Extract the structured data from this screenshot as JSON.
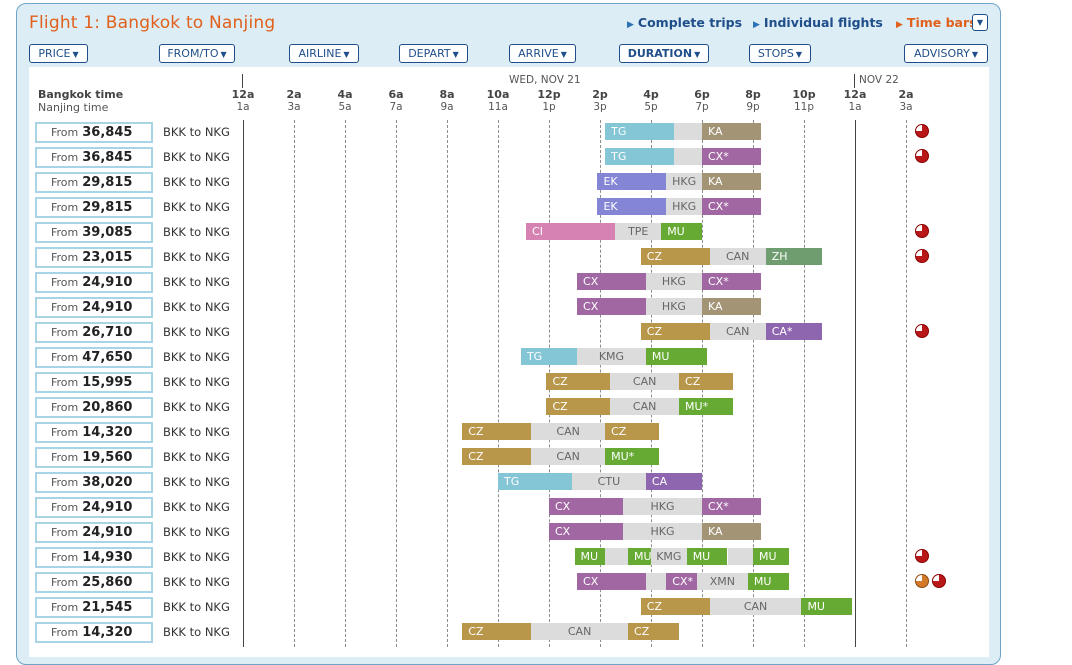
{
  "title": "Flight 1: Bangkok to Nanjing",
  "top_links": [
    "Complete trips",
    "Individual flights",
    "Time bars"
  ],
  "sort_buttons": [
    "PRICE",
    "FROM/TO",
    "AIRLINE",
    "DEPART",
    "ARRIVE",
    "DURATION",
    "STOPS",
    "ADVISORY"
  ],
  "header": {
    "origin_time_label": "Bangkok time",
    "dest_time_label": "Nanjing time",
    "date1": "WED, NOV 21",
    "date2": "NOV 22",
    "ticks_top": [
      "12a",
      "2a",
      "4a",
      "6a",
      "8a",
      "10a",
      "12p",
      "2p",
      "4p",
      "6p",
      "8p",
      "10p",
      "12a",
      "2a"
    ],
    "ticks_bottom": [
      "1a",
      "3a",
      "5a",
      "7a",
      "9a",
      "11a",
      "1p",
      "3p",
      "5p",
      "7p",
      "9p",
      "11p",
      "1a",
      "3a"
    ]
  },
  "price_prefix": "From",
  "carrier_colors": {
    "TG": "#84c6d6",
    "KA": "#a39476",
    "CX": "#a167a3",
    "EK": "#8585d6",
    "CI": "#d682b3",
    "MU": "#66aa33",
    "CZ": "#b8964a",
    "ZH": "#6f9d6f",
    "CA": "#8e66b0"
  },
  "rows": [
    {
      "price": "36,845",
      "route": "BKK to NKG",
      "advisory": [
        "red"
      ],
      "segments": [
        [
          "TG",
          "TG",
          14.2,
          16.9
        ],
        [
          "lay",
          "",
          16.9,
          18.0
        ],
        [
          "KA",
          "KA",
          18.0,
          20.3
        ]
      ]
    },
    {
      "price": "36,845",
      "route": "BKK to NKG",
      "advisory": [
        "red"
      ],
      "segments": [
        [
          "TG",
          "TG",
          14.2,
          16.9
        ],
        [
          "lay",
          "",
          16.9,
          18.0
        ],
        [
          "CX",
          "CX*",
          18.0,
          20.3
        ]
      ]
    },
    {
      "price": "29,815",
      "route": "BKK to NKG",
      "advisory": [],
      "segments": [
        [
          "EK",
          "EK",
          13.9,
          16.6
        ],
        [
          "lay",
          "HKG",
          16.6,
          18.0
        ],
        [
          "KA",
          "KA",
          18.0,
          20.3
        ]
      ]
    },
    {
      "price": "29,815",
      "route": "BKK to NKG",
      "advisory": [],
      "segments": [
        [
          "EK",
          "EK",
          13.9,
          16.6
        ],
        [
          "lay",
          "HKG",
          16.6,
          18.0
        ],
        [
          "CX",
          "CX*",
          18.0,
          20.3
        ]
      ]
    },
    {
      "price": "39,085",
      "route": "BKK to NKG",
      "advisory": [
        "red"
      ],
      "segments": [
        [
          "CI",
          "CI",
          11.1,
          14.6
        ],
        [
          "lay",
          "TPE",
          14.6,
          16.4
        ],
        [
          "MU",
          "MU",
          16.4,
          18.0
        ]
      ]
    },
    {
      "price": "23,015",
      "route": "BKK to NKG",
      "advisory": [
        "red"
      ],
      "segments": [
        [
          "CZ",
          "CZ",
          15.6,
          18.3
        ],
        [
          "lay",
          "CAN",
          18.3,
          20.5
        ],
        [
          "ZH",
          "ZH",
          20.5,
          22.7
        ]
      ]
    },
    {
      "price": "24,910",
      "route": "BKK to NKG",
      "advisory": [],
      "segments": [
        [
          "CX",
          "CX",
          13.1,
          15.8
        ],
        [
          "lay",
          "HKG",
          15.8,
          18.0
        ],
        [
          "CX",
          "CX*",
          18.0,
          20.3
        ]
      ]
    },
    {
      "price": "24,910",
      "route": "BKK to NKG",
      "advisory": [],
      "segments": [
        [
          "CX",
          "CX",
          13.1,
          15.8
        ],
        [
          "lay",
          "HKG",
          15.8,
          18.0
        ],
        [
          "KA",
          "KA",
          18.0,
          20.3
        ]
      ]
    },
    {
      "price": "26,710",
      "route": "BKK to NKG",
      "advisory": [
        "red"
      ],
      "segments": [
        [
          "CZ",
          "CZ",
          15.6,
          18.3
        ],
        [
          "lay",
          "CAN",
          18.3,
          20.5
        ],
        [
          "CA",
          "CA*",
          20.5,
          22.7
        ]
      ]
    },
    {
      "price": "47,650",
      "route": "BKK to NKG",
      "advisory": [],
      "segments": [
        [
          "TG",
          "TG",
          10.9,
          13.1
        ],
        [
          "lay",
          "KMG",
          13.1,
          15.8
        ],
        [
          "MU",
          "MU",
          15.8,
          18.2
        ]
      ]
    },
    {
      "price": "15,995",
      "route": "BKK to NKG",
      "advisory": [],
      "segments": [
        [
          "CZ",
          "CZ",
          11.9,
          14.4
        ],
        [
          "lay",
          "CAN",
          14.4,
          17.1
        ],
        [
          "CZ",
          "CZ",
          17.1,
          19.2
        ]
      ]
    },
    {
      "price": "20,860",
      "route": "BKK to NKG",
      "advisory": [],
      "segments": [
        [
          "CZ",
          "CZ",
          11.9,
          14.4
        ],
        [
          "lay",
          "CAN",
          14.4,
          17.1
        ],
        [
          "MU",
          "MU*",
          17.1,
          19.2
        ]
      ]
    },
    {
      "price": "14,320",
      "route": "BKK to NKG",
      "advisory": [],
      "segments": [
        [
          "CZ",
          "CZ",
          8.6,
          11.3
        ],
        [
          "lay",
          "CAN",
          11.3,
          14.2
        ],
        [
          "CZ",
          "CZ",
          14.2,
          16.3
        ]
      ]
    },
    {
      "price": "19,560",
      "route": "BKK to NKG",
      "advisory": [],
      "segments": [
        [
          "CZ",
          "CZ",
          8.6,
          11.3
        ],
        [
          "lay",
          "CAN",
          11.3,
          14.2
        ],
        [
          "MU",
          "MU*",
          14.2,
          16.3
        ]
      ]
    },
    {
      "price": "38,020",
      "route": "BKK to NKG",
      "advisory": [],
      "segments": [
        [
          "TG",
          "TG",
          10.0,
          12.9
        ],
        [
          "lay",
          "CTU",
          12.9,
          15.8
        ],
        [
          "CA",
          "CA",
          15.8,
          18.0
        ]
      ]
    },
    {
      "price": "24,910",
      "route": "BKK to NKG",
      "advisory": [],
      "segments": [
        [
          "CX",
          "CX",
          12.0,
          14.9
        ],
        [
          "lay",
          "HKG",
          14.9,
          18.0
        ],
        [
          "CX",
          "CX*",
          18.0,
          20.3
        ]
      ]
    },
    {
      "price": "24,910",
      "route": "BKK to NKG",
      "advisory": [],
      "segments": [
        [
          "CX",
          "CX",
          12.0,
          14.9
        ],
        [
          "lay",
          "HKG",
          14.9,
          18.0
        ],
        [
          "KA",
          "KA",
          18.0,
          20.3
        ]
      ]
    },
    {
      "price": "14,930",
      "route": "BKK to NKG",
      "advisory": [
        "red"
      ],
      "segments": [
        [
          "MU",
          "MU",
          13.0,
          14.2
        ],
        [
          "lay",
          "",
          14.2,
          15.1
        ],
        [
          "MU",
          "MU",
          15.1,
          16.0
        ],
        [
          "lay",
          "KMG",
          16.0,
          17.4
        ],
        [
          "MU",
          "MU",
          17.4,
          19.0
        ],
        [
          "lay",
          "",
          19.0,
          20.0
        ],
        [
          "MU",
          "MU",
          20.0,
          21.4
        ]
      ]
    },
    {
      "price": "25,860",
      "route": "BKK to NKG",
      "advisory": [
        "orange",
        "red"
      ],
      "segments": [
        [
          "CX",
          "CX",
          13.1,
          15.8
        ],
        [
          "lay",
          "",
          15.8,
          16.6
        ],
        [
          "CX",
          "CX*",
          16.6,
          17.8
        ],
        [
          "lay",
          "XMN",
          17.8,
          19.8
        ],
        [
          "MU",
          "MU",
          19.8,
          21.4
        ]
      ]
    },
    {
      "price": "21,545",
      "route": "BKK to NKG",
      "advisory": [],
      "segments": [
        [
          "CZ",
          "CZ",
          15.6,
          18.3
        ],
        [
          "lay",
          "CAN",
          18.3,
          21.9
        ],
        [
          "MU",
          "MU",
          21.9,
          23.9
        ]
      ]
    },
    {
      "price": "14,320",
      "route": "BKK to NKG",
      "advisory": [],
      "segments": [
        [
          "CZ",
          "CZ",
          8.6,
          11.3
        ],
        [
          "lay",
          "CAN",
          11.3,
          15.1
        ],
        [
          "CZ",
          "CZ",
          15.1,
          17.1
        ]
      ]
    }
  ]
}
